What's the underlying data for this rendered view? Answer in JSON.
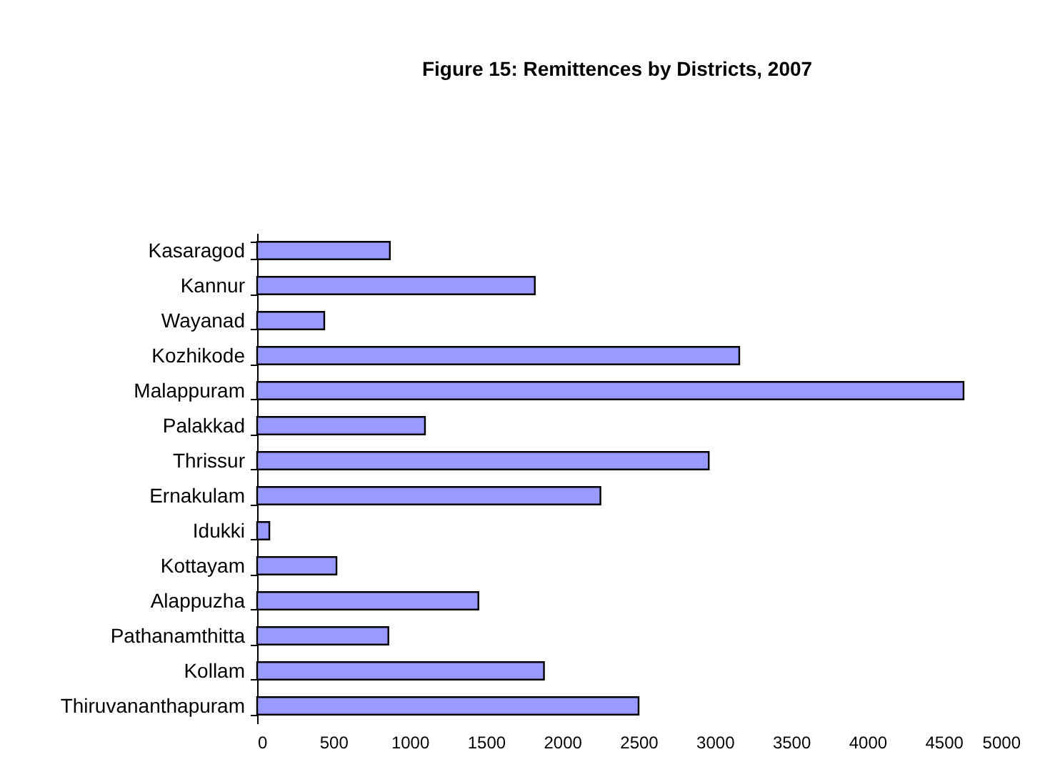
{
  "chart_data": {
    "type": "bar",
    "orientation": "horizontal",
    "title": "Figure 15: Remittences by Districts, 2007",
    "categories": [
      "Kasaragod",
      "Kannur",
      "Wayanad",
      "Kozhikode",
      "Malappuram",
      "Palakkad",
      "Thrissur",
      "Ernakulam",
      "Idukki",
      "Kottayam",
      "Alappuzha",
      "Pathanamthitta",
      "Kollam",
      "Thiruvananthapuram"
    ],
    "values": [
      870,
      1820,
      440,
      3160,
      4630,
      1100,
      2960,
      2250,
      80,
      520,
      1450,
      860,
      1880,
      2500
    ],
    "color": "#9999ff",
    "xlim": [
      0,
      5000
    ],
    "xticks": [
      0,
      500,
      1000,
      1500,
      2000,
      2500,
      3000,
      3500,
      4000,
      4500,
      5000
    ],
    "grid": false
  }
}
